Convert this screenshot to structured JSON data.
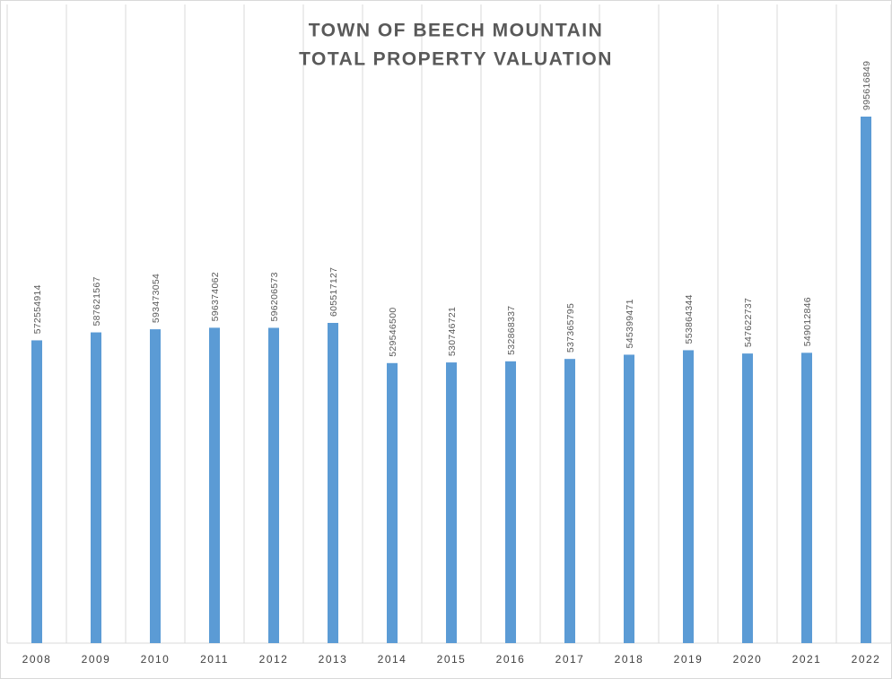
{
  "chart_data": {
    "type": "bar",
    "title": [
      "TOWN OF BEECH MOUNTAIN",
      "TOTAL PROPERTY VALUATION"
    ],
    "categories": [
      "2008",
      "2009",
      "2010",
      "2011",
      "2012",
      "2013",
      "2014",
      "2015",
      "2016",
      "2017",
      "2018",
      "2019",
      "2020",
      "2021",
      "2022"
    ],
    "values": [
      572554914,
      587621567,
      593473054,
      596374062,
      596206573,
      605517127,
      529546500,
      530746721,
      532868337,
      537365795,
      545399471,
      553864344,
      547622737,
      549012846,
      995616849
    ],
    "color": "#5b9bd5",
    "ylim": [
      0,
      1200000000
    ]
  }
}
